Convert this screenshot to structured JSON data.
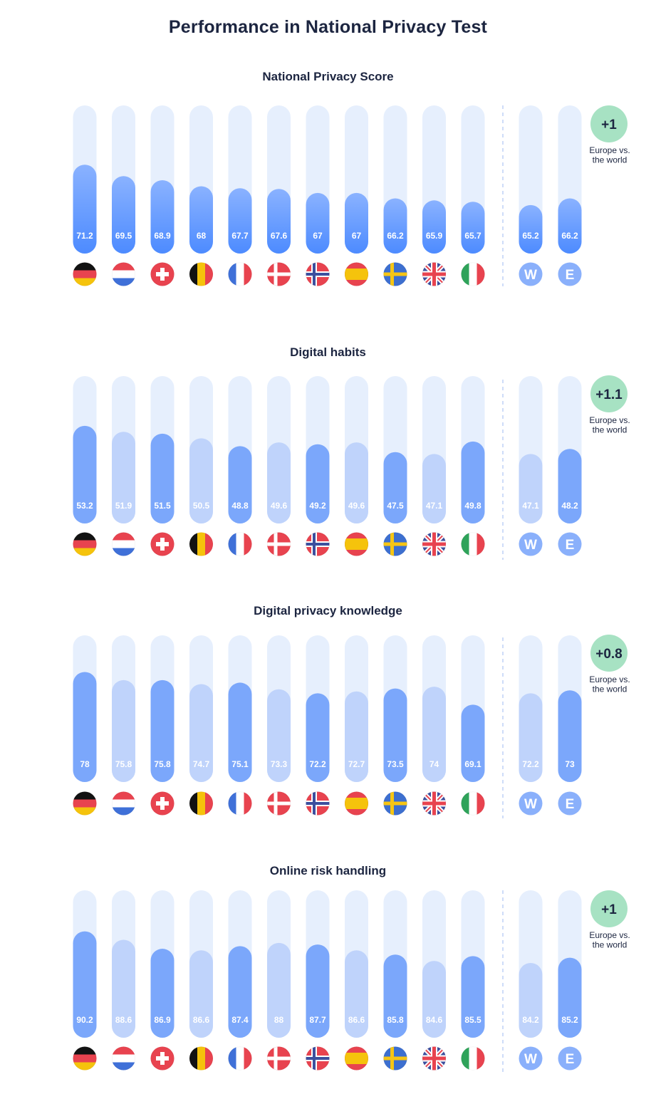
{
  "title": "Performance in National Privacy Test",
  "colors": {
    "track": "#e6effd",
    "bar_strong_top": "#8ab2ff",
    "bar_strong_bottom": "#4d8bff",
    "bar_mid": "#7ba7fb",
    "bar_light": "#bfd3fb",
    "diff_badge": "#a7e2c3",
    "divider": "#b3c9f5"
  },
  "flags": [
    "germany-flag",
    "netherlands-flag",
    "switzerland-flag",
    "belgium-flag",
    "france-flag",
    "denmark-flag",
    "norway-flag",
    "spain-flag",
    "sweden-flag",
    "uk-flag",
    "italy-flag"
  ],
  "aggregates": [
    {
      "icon": "world-icon",
      "letter": "W"
    },
    {
      "icon": "europe-icon",
      "letter": "E"
    }
  ],
  "comparison_caption": [
    "Europe vs.",
    "the world"
  ],
  "chart_data": [
    {
      "type": "bar",
      "title": "National Privacy Score",
      "style": "strong",
      "values": [
        71.2,
        69.5,
        68.9,
        68,
        67.7,
        67.6,
        67,
        67,
        66.2,
        65.9,
        65.7,
        65.2,
        66.2
      ],
      "labels": [
        "71.2",
        "69.5",
        "68.9",
        "68",
        "67.7",
        "67.6",
        "67",
        "67",
        "66.2",
        "65.9",
        "65.7",
        "65.2",
        "66.2"
      ],
      "shade": [
        "strong",
        "strong",
        "strong",
        "strong",
        "strong",
        "strong",
        "strong",
        "strong",
        "strong",
        "strong",
        "strong",
        "strong",
        "strong"
      ],
      "difference": "+1"
    },
    {
      "type": "bar",
      "title": "Digital habits",
      "values": [
        53.2,
        51.9,
        51.5,
        50.5,
        48.8,
        49.6,
        49.2,
        49.6,
        47.5,
        47.1,
        49.8,
        47.1,
        48.2
      ],
      "labels": [
        "53.2",
        "51.9",
        "51.5",
        "50.5",
        "48.8",
        "49.6",
        "49.2",
        "49.6",
        "47.5",
        "47.1",
        "49.8",
        "47.1",
        "48.2"
      ],
      "shade": [
        "mid",
        "light",
        "mid",
        "light",
        "mid",
        "light",
        "mid",
        "light",
        "mid",
        "light",
        "mid",
        "light",
        "mid"
      ],
      "difference": "+1.1"
    },
    {
      "type": "bar",
      "title": "Digital privacy knowledge",
      "values": [
        78,
        75.8,
        75.8,
        74.7,
        75.1,
        73.3,
        72.2,
        72.7,
        73.5,
        74,
        69.1,
        72.2,
        73
      ],
      "labels": [
        "78",
        "75.8",
        "75.8",
        "74.7",
        "75.1",
        "73.3",
        "72.2",
        "72.7",
        "73.5",
        "74",
        "69.1",
        "72.2",
        "73"
      ],
      "shade": [
        "mid",
        "light",
        "mid",
        "light",
        "mid",
        "light",
        "mid",
        "light",
        "mid",
        "light",
        "mid",
        "light",
        "mid"
      ],
      "difference": "+0.8"
    },
    {
      "type": "bar",
      "title": "Online risk handling",
      "values": [
        90.2,
        88.6,
        86.9,
        86.6,
        87.4,
        88,
        87.7,
        86.6,
        85.8,
        84.6,
        85.5,
        84.2,
        85.2
      ],
      "labels": [
        "90.2",
        "88.6",
        "86.9",
        "86.6",
        "87.4",
        "88",
        "87.7",
        "86.6",
        "85.8",
        "84.6",
        "85.5",
        "84.2",
        "85.2"
      ],
      "shade": [
        "mid",
        "light",
        "mid",
        "light",
        "mid",
        "light",
        "mid",
        "light",
        "mid",
        "light",
        "mid",
        "light",
        "mid"
      ],
      "difference": "+1"
    }
  ]
}
